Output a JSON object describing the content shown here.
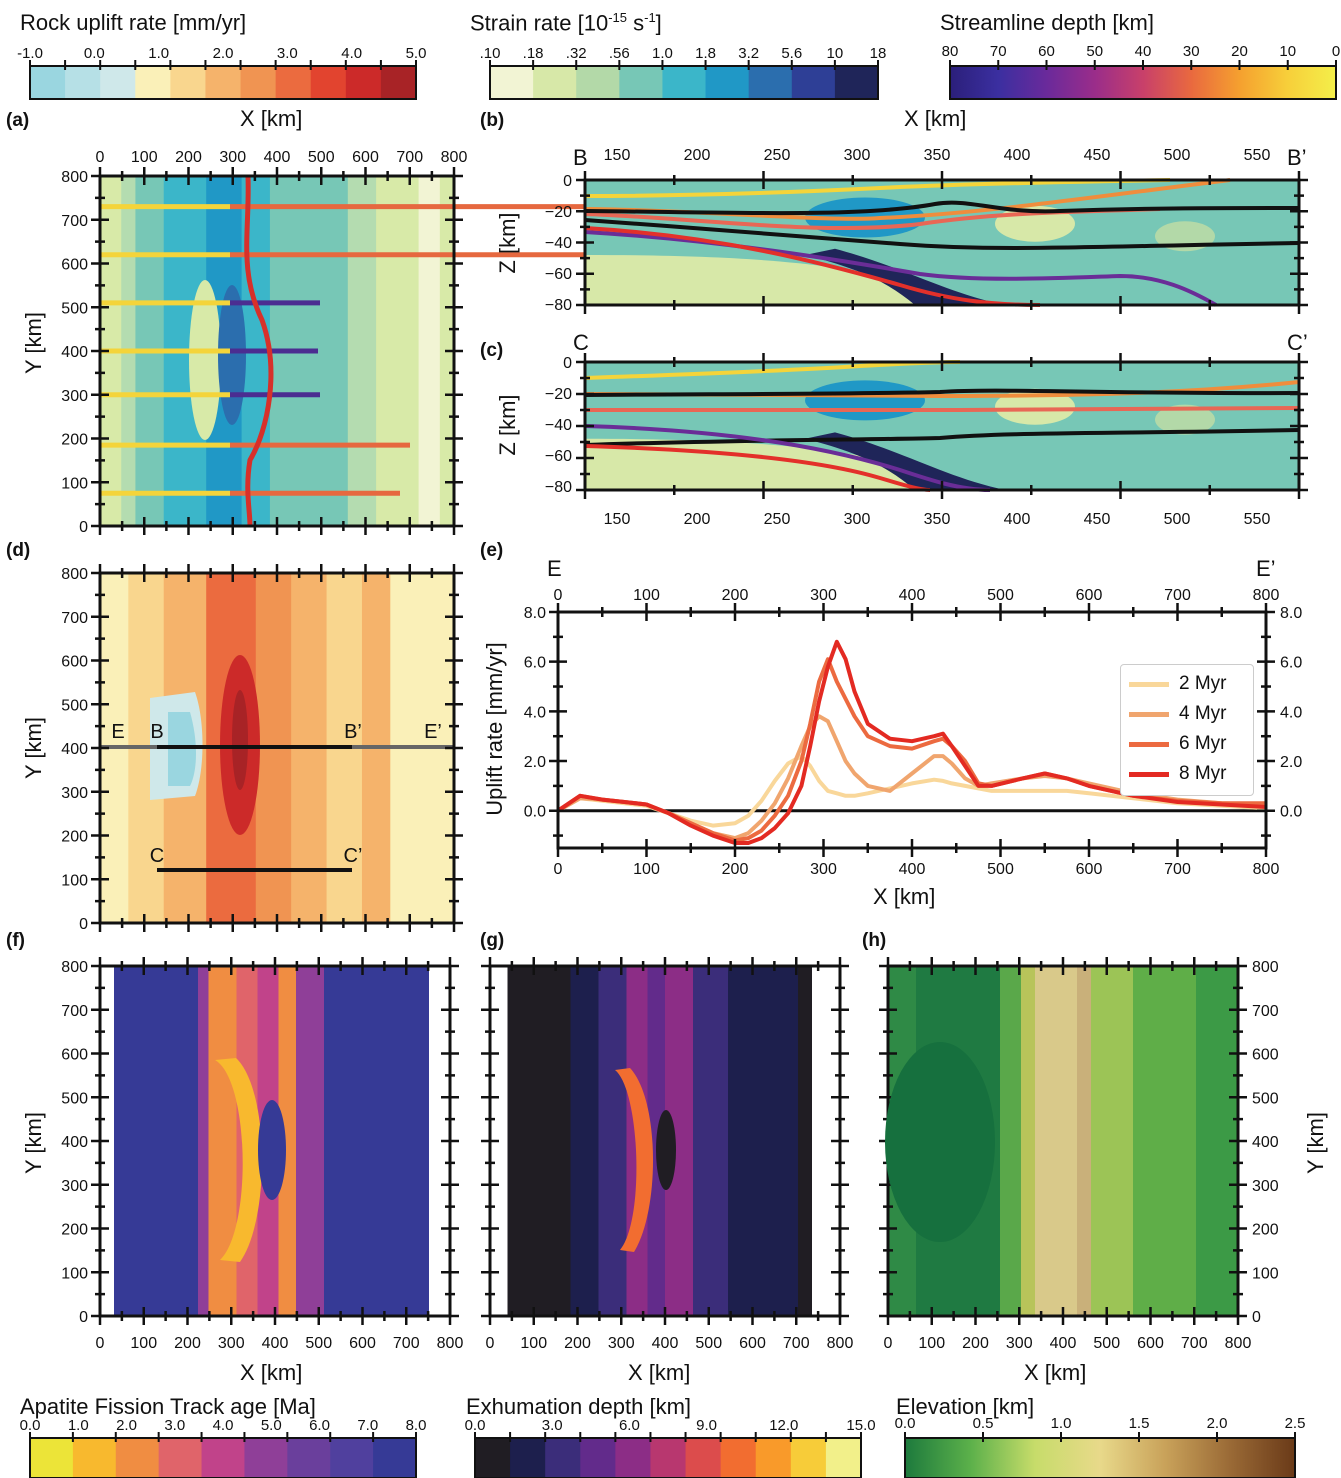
{
  "colorbars": {
    "uplift": {
      "title": "Rock uplift rate [mm/yr]",
      "ticks": [
        "-1.0",
        "0.0",
        "1.0",
        "2.0",
        "3.0",
        "4.0",
        "5.0"
      ],
      "colors": [
        "#9ad6e0",
        "#b6e0e6",
        "#cfe8ea",
        "#faf0b8",
        "#f9d68e",
        "#f5b36b",
        "#f09452",
        "#eb6b3f",
        "#e2442f",
        "#cc2a29",
        "#a82326"
      ]
    },
    "strain": {
      "title_main": "Strain rate [10",
      "title_exp1": "-15",
      "title_mid": " s",
      "title_exp2": "-1",
      "title_end": "]",
      "ticks": [
        ".10",
        ".18",
        ".32",
        ".56",
        "1.0",
        "1.8",
        "3.2",
        "5.6",
        "10",
        "18"
      ],
      "colors": [
        "#f2f4d4",
        "#d7e8a8",
        "#b3d9a8",
        "#77c7b6",
        "#3bb6c9",
        "#2098c6",
        "#2b6eae",
        "#2e3f96",
        "#1f2559"
      ]
    },
    "depth": {
      "title": "Streamline depth [km]",
      "ticks": [
        "80",
        "70",
        "60",
        "50",
        "40",
        "30",
        "20",
        "10",
        "0"
      ]
    },
    "aft": {
      "title": "Apatite Fission Track age [Ma]",
      "ticks": [
        "0.0",
        "1.0",
        "2.0",
        "3.0",
        "4.0",
        "5.0",
        "6.0",
        "7.0",
        "8.0"
      ],
      "colors": [
        "#ece438",
        "#f8b92e",
        "#f08d42",
        "#e0646a",
        "#c1438a",
        "#8f3f98",
        "#6a3f9c",
        "#50409e",
        "#363a96"
      ]
    },
    "exhum": {
      "title": "Exhumation depth [km]",
      "ticks": [
        "0.0",
        "3.0",
        "6.0",
        "9.0",
        "12.0",
        "15.0"
      ],
      "colors": [
        "#201d23",
        "#1d1f4d",
        "#3b2d7a",
        "#622b8b",
        "#8c2d86",
        "#b8376f",
        "#dc4c4c",
        "#f26d30",
        "#f99a2a",
        "#f7cc39",
        "#f2f08a"
      ]
    },
    "elev": {
      "title": "Elevation [km]",
      "ticks": [
        "0.0",
        "0.5",
        "1.0",
        "1.5",
        "2.0",
        "2.5"
      ]
    }
  },
  "panels": {
    "a": {
      "tag": "(a)",
      "xlabel": "X [km]",
      "ylabel": "Y [km]",
      "xticks": [
        "0",
        "100",
        "200",
        "300",
        "400",
        "500",
        "600",
        "700",
        "800"
      ],
      "yticks": [
        "0",
        "100",
        "200",
        "300",
        "400",
        "500",
        "600",
        "700",
        "800"
      ]
    },
    "b": {
      "tag": "(b)",
      "xlabel": "X [km]",
      "ylabel": "Z [km]",
      "left": "B",
      "right": "B’",
      "xticks": [
        "150",
        "200",
        "250",
        "300",
        "350",
        "400",
        "450",
        "500",
        "550"
      ],
      "yticks": [
        "0",
        "−20",
        "−40",
        "−60",
        "−80"
      ]
    },
    "c": {
      "tag": "(c)",
      "ylabel": "Z [km]",
      "left": "C",
      "right": "C’",
      "xticks": [
        "150",
        "200",
        "250",
        "300",
        "350",
        "400",
        "450",
        "500",
        "550"
      ],
      "yticks": [
        "0",
        "−20",
        "−40",
        "−60",
        "−80"
      ]
    },
    "d": {
      "tag": "(d)",
      "ylabel": "Y [km]",
      "yticks": [
        "0",
        "100",
        "200",
        "300",
        "400",
        "500",
        "600",
        "700",
        "800"
      ],
      "labels": {
        "E": "E",
        "B": "B",
        "Bp": "B’",
        "Ep": "E’",
        "C": "C",
        "Cp": "C’"
      }
    },
    "e": {
      "tag": "(e)",
      "xlabel": "X [km]",
      "ylabel": "Uplift rate [mm/yr]",
      "left": "E",
      "right": "E’",
      "xticks": [
        "0",
        "100",
        "200",
        "300",
        "400",
        "500",
        "600",
        "700",
        "800"
      ],
      "yticks": [
        "0.0",
        "2.0",
        "4.0",
        "6.0",
        "8.0"
      ]
    },
    "f": {
      "tag": "(f)",
      "xlabel": "X [km]",
      "ylabel": "Y [km]",
      "xticks": [
        "0",
        "100",
        "200",
        "300",
        "400",
        "500",
        "600",
        "700",
        "800"
      ],
      "yticks": [
        "0",
        "100",
        "200",
        "300",
        "400",
        "500",
        "600",
        "700",
        "800"
      ]
    },
    "g": {
      "tag": "(g)",
      "xlabel": "X [km]",
      "xticks": [
        "0",
        "100",
        "200",
        "300",
        "400",
        "500",
        "600",
        "700",
        "800"
      ]
    },
    "h": {
      "tag": "(h)",
      "xlabel": "X [km]",
      "ylabel": "Y [km]",
      "xticks": [
        "0",
        "100",
        "200",
        "300",
        "400",
        "500",
        "600",
        "700",
        "800"
      ],
      "yticks": [
        "0",
        "100",
        "200",
        "300",
        "400",
        "500",
        "600",
        "700",
        "800"
      ]
    }
  },
  "chart_data": {
    "type": "line",
    "xlabel": "X [km]",
    "ylabel": "Uplift rate [mm/yr]",
    "xlim": [
      0,
      800
    ],
    "ylim": [
      -1.5,
      8.0
    ],
    "x": [
      0,
      25,
      50,
      75,
      100,
      125,
      150,
      175,
      200,
      215,
      230,
      245,
      260,
      275,
      285,
      295,
      305,
      315,
      325,
      335,
      350,
      375,
      400,
      425,
      435,
      445,
      460,
      475,
      490,
      525,
      550,
      575,
      600,
      650,
      700,
      750,
      800
    ],
    "series": [
      {
        "name": "2 Myr",
        "color": "#f9d79a",
        "values": [
          0,
          0.5,
          0.4,
          0.3,
          0.2,
          -0.1,
          -0.4,
          -0.6,
          -0.5,
          -0.2,
          0.4,
          1.2,
          1.9,
          2.2,
          1.8,
          1.2,
          0.8,
          0.7,
          0.6,
          0.6,
          0.7,
          0.9,
          1.1,
          1.25,
          1.2,
          1.1,
          1.0,
          0.9,
          0.8,
          0.8,
          0.8,
          0.8,
          0.7,
          0.5,
          0.3,
          0.2,
          0.1
        ]
      },
      {
        "name": "4 Myr",
        "color": "#f0a56e",
        "values": [
          0,
          0.5,
          0.45,
          0.35,
          0.25,
          -0.1,
          -0.5,
          -0.9,
          -1.1,
          -0.9,
          -0.4,
          0.3,
          1.3,
          2.6,
          3.4,
          3.8,
          3.6,
          2.8,
          2.0,
          1.5,
          1.0,
          0.8,
          1.5,
          2.2,
          2.2,
          1.9,
          1.3,
          1.0,
          1.1,
          1.3,
          1.4,
          1.3,
          1.1,
          0.7,
          0.45,
          0.3,
          0.25
        ]
      },
      {
        "name": "6 Myr",
        "color": "#ec6a40",
        "values": [
          0,
          0.6,
          0.45,
          0.35,
          0.25,
          -0.1,
          -0.5,
          -0.9,
          -1.2,
          -1.1,
          -0.8,
          -0.2,
          0.6,
          2.0,
          3.5,
          5.2,
          6.1,
          5.2,
          4.5,
          3.8,
          3.0,
          2.6,
          2.5,
          2.8,
          2.9,
          2.6,
          2.0,
          1.1,
          1.0,
          1.3,
          1.5,
          1.3,
          1.0,
          0.6,
          0.4,
          0.3,
          0.3
        ]
      },
      {
        "name": "8 Myr",
        "color": "#e32a22",
        "values": [
          0,
          0.6,
          0.45,
          0.35,
          0.25,
          -0.1,
          -0.6,
          -1.0,
          -1.3,
          -1.3,
          -1.1,
          -0.7,
          -0.1,
          1.0,
          2.6,
          4.4,
          5.8,
          6.8,
          6.1,
          4.8,
          3.5,
          2.9,
          2.8,
          3.0,
          3.1,
          2.6,
          1.8,
          1.0,
          1.0,
          1.3,
          1.5,
          1.3,
          1.0,
          0.6,
          0.35,
          0.25,
          0.15
        ]
      }
    ]
  }
}
